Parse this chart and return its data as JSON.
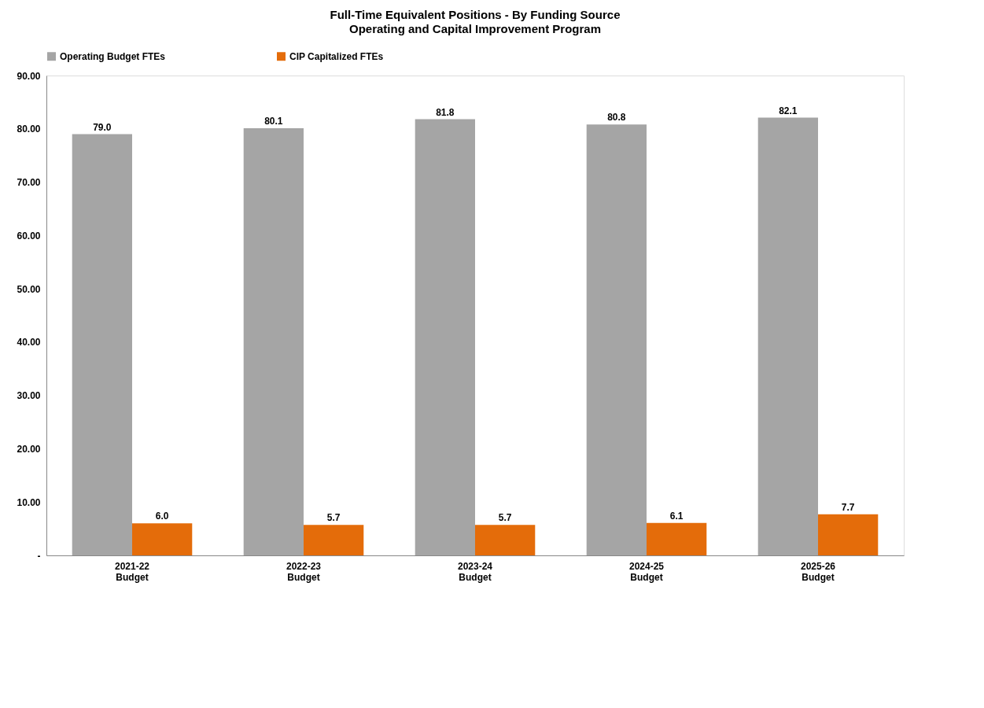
{
  "chart_data": {
    "type": "bar",
    "title": "Full-Time Equivalent Positions - By Funding Source",
    "subtitle": "Operating and Capital Improvement Program",
    "categories": [
      "2021-22\nBudget",
      "2022-23\nBudget",
      "2023-24\nBudget",
      "2024-25\nBudget",
      "2025-26\nBudget"
    ],
    "series": [
      {
        "name": "Operating Budget FTEs",
        "color": "#a5a5a5",
        "values": [
          79.0,
          80.1,
          81.8,
          80.8,
          82.1
        ],
        "value_labels": [
          "79.0",
          "80.1",
          "81.8",
          "80.8",
          "82.1"
        ]
      },
      {
        "name": "CIP Capitalized FTEs",
        "color": "#e46c0a",
        "values": [
          6.0,
          5.7,
          5.7,
          6.1,
          7.7
        ],
        "value_labels": [
          "6.0",
          "5.7",
          "5.7",
          "6.1",
          "7.7"
        ]
      }
    ],
    "ylim": [
      0,
      90
    ],
    "yticks": [
      {
        "value": 0,
        "label": "-"
      },
      {
        "value": 10,
        "label": "10.00"
      },
      {
        "value": 20,
        "label": "20.00"
      },
      {
        "value": 30,
        "label": "30.00"
      },
      {
        "value": 40,
        "label": "40.00"
      },
      {
        "value": 50,
        "label": "50.00"
      },
      {
        "value": 60,
        "label": "60.00"
      },
      {
        "value": 70,
        "label": "70.00"
      },
      {
        "value": 80,
        "label": "80.00"
      },
      {
        "value": 90,
        "label": "90.00"
      }
    ],
    "grid": false,
    "legend": "top"
  }
}
